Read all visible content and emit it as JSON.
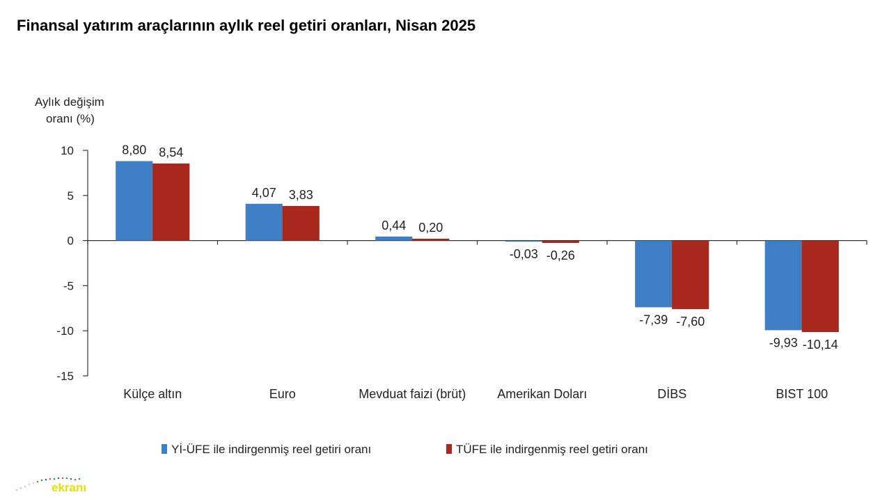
{
  "title": "Finansal yatırım araçlarının aylık reel getiri oranları, Nisan 2025",
  "watermark": {
    "text": "ekranı",
    "color": "#e8e000"
  },
  "chart_data": {
    "type": "bar",
    "title": "Finansal yatırım araçlarının aylık reel getiri oranları, Nisan 2025",
    "ylabel_lines": [
      "Aylık değişim",
      "oranı (%)"
    ],
    "xlabel": "",
    "ylim": [
      -15,
      10
    ],
    "yticks": [
      10,
      5,
      0,
      -5,
      -10,
      -15
    ],
    "ytick_labels": [
      "10",
      "5",
      "0",
      "-5",
      "-10",
      "-15"
    ],
    "grid": false,
    "legend_position": "bottom",
    "categories": [
      "Külçe altın",
      "Euro",
      "Mevduat faizi (brüt)",
      "Amerikan Doları",
      "DİBS",
      "BIST 100"
    ],
    "series": [
      {
        "name": "Yİ-ÜFE ile indirgenmiş reel getiri oranı",
        "color": "#3f7fc6",
        "values": [
          8.8,
          4.07,
          0.44,
          -0.03,
          -7.39,
          -9.93
        ],
        "labels": [
          "8,80",
          "4,07",
          "0,44",
          "-0,03",
          "-7,39",
          "-9,93"
        ]
      },
      {
        "name": "TÜFE ile indirgenmiş reel getiri oranı",
        "color": "#a8281e",
        "values": [
          8.54,
          3.83,
          0.2,
          -0.26,
          -7.6,
          -10.14
        ],
        "labels": [
          "8,54",
          "3,83",
          "0,20",
          "-0,26",
          "-7,60",
          "-10,14"
        ]
      }
    ]
  }
}
